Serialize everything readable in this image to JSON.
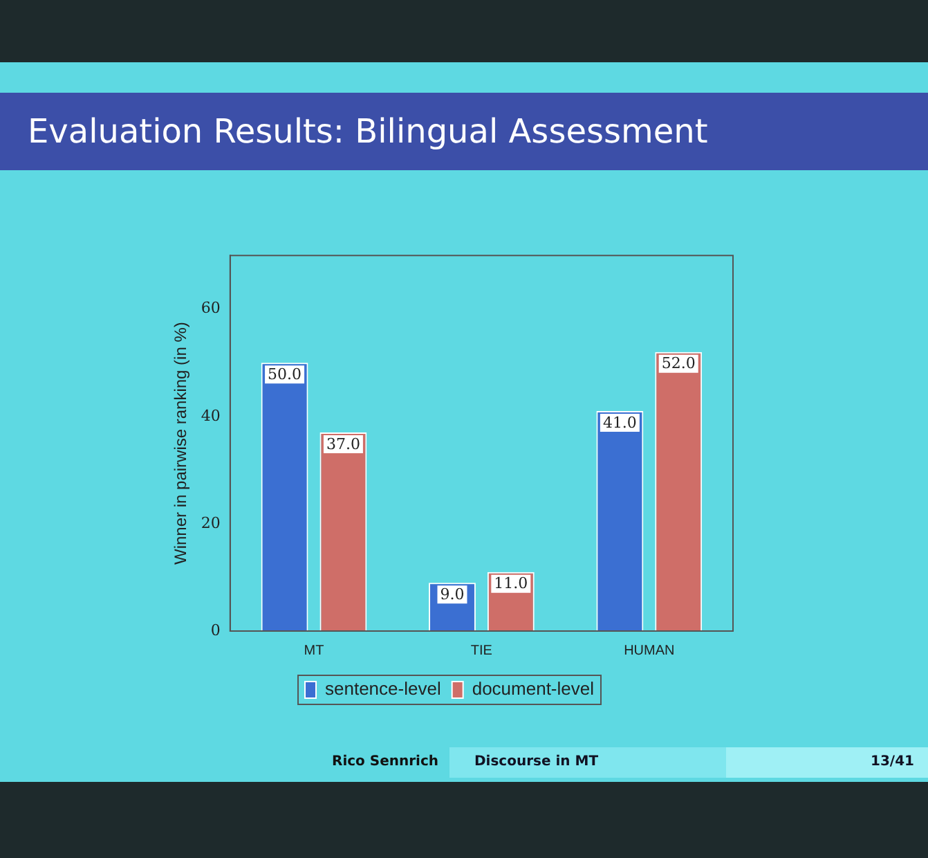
{
  "chart_data": {
    "type": "bar",
    "title": "Evaluation Results: Bilingual Assessment",
    "ylabel": "Winner in pairwise ranking (in %)",
    "categories": [
      "MT",
      "TIE",
      "HUMAN"
    ],
    "series": [
      {
        "name": "sentence-level",
        "color": "#3b6fd2",
        "values": [
          50.0,
          9.0,
          41.0
        ],
        "value_labels": [
          "50.0",
          "9.0",
          "41.0"
        ]
      },
      {
        "name": "document-level",
        "color": "#cf6e68",
        "values": [
          37.0,
          11.0,
          52.0
        ],
        "value_labels": [
          "37.0",
          "11.0",
          "52.0"
        ]
      }
    ],
    "ylim": [
      0,
      70
    ],
    "yticks": [
      0,
      20,
      40,
      60
    ],
    "grid": false,
    "legend": "bottom",
    "annotations": [
      "Rico Sennrich",
      "Discourse in MT",
      "13/41"
    ]
  }
}
